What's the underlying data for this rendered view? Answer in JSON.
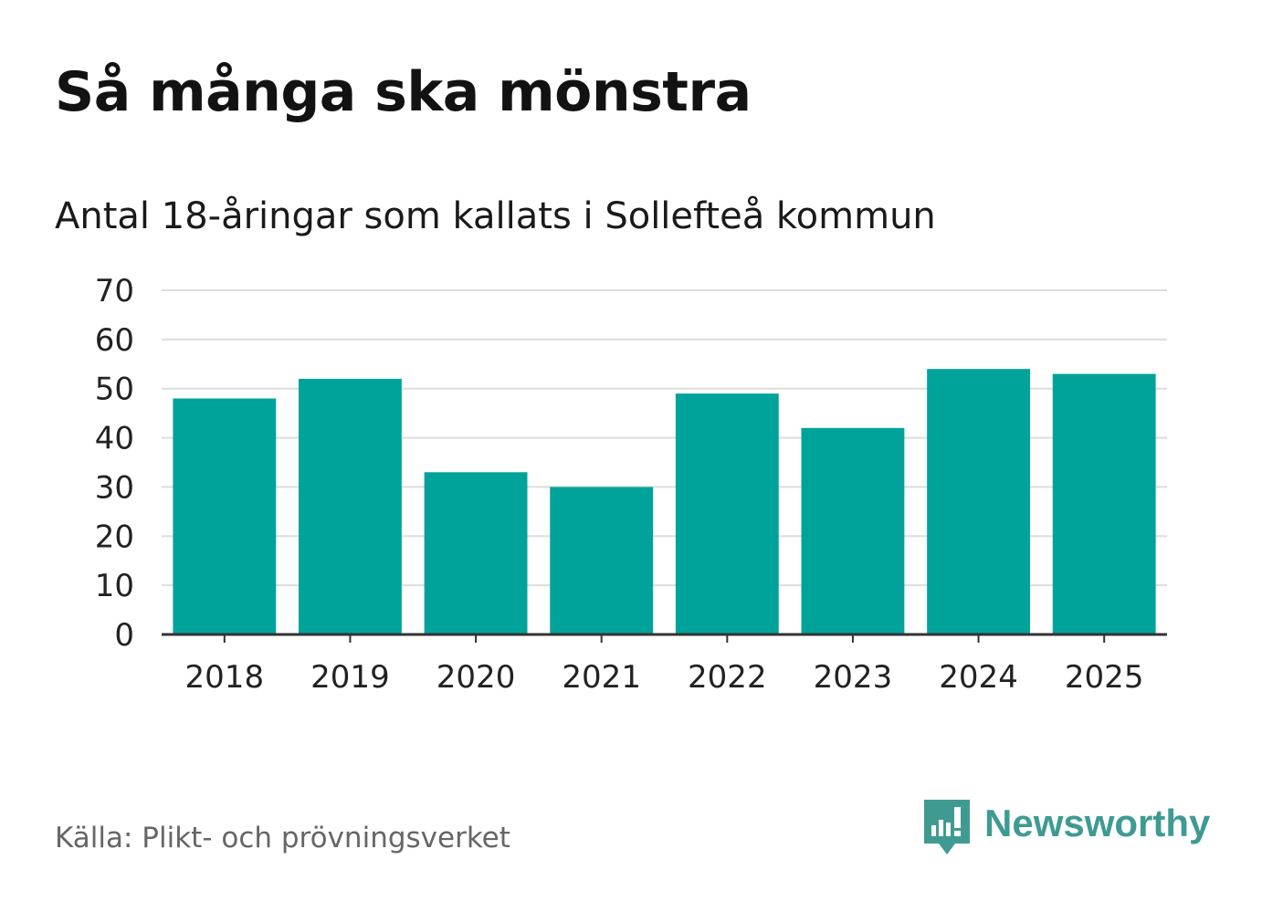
{
  "header": {
    "title": "Så många ska mönstra",
    "subtitle": "Antal 18-åringar som kallats i Sollefteå kommun"
  },
  "footer": {
    "source": "Källa: Plikt- och prövningsverket",
    "brand": "Newsworthy",
    "brand_icon": "newsworthy-logo-icon"
  },
  "colors": {
    "bar": "#00a39a",
    "grid": "#dddddd",
    "axis": "#333333",
    "brand": "#3f9b92"
  },
  "chart_data": {
    "type": "bar",
    "title": "Så många ska mönstra",
    "subtitle": "Antal 18-åringar som kallats i Sollefteå kommun",
    "xlabel": "",
    "ylabel": "",
    "categories": [
      "2018",
      "2019",
      "2020",
      "2021",
      "2022",
      "2023",
      "2024",
      "2025"
    ],
    "values": [
      48,
      52,
      33,
      30,
      49,
      42,
      54,
      53
    ],
    "ylim": [
      0,
      70
    ],
    "yticks": [
      0,
      10,
      20,
      30,
      40,
      50,
      60,
      70
    ],
    "grid": true,
    "legend": "none"
  }
}
